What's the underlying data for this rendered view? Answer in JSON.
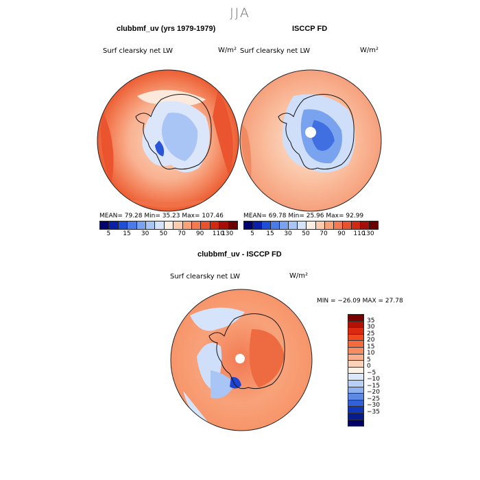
{
  "season": "JJA",
  "panels": {
    "model": {
      "title": "clubbmf_uv (yrs 1979-1979)",
      "variable": "Surf clearsky net LW",
      "units": "W/m²",
      "stats": "MEAN=   79.28   Min=   35.23   Max=  107.46"
    },
    "obs": {
      "title": "ISCCP FD",
      "variable": "Surf clearsky net LW",
      "units": "W/m²",
      "stats": "MEAN=   69.78   Min=   25.96   Max=   92.99"
    },
    "diff": {
      "title": "clubbmf_uv - ISCCP FD",
      "variable": "Surf clearsky net LW",
      "units": "W/m²",
      "stats": "MIN = −26.09  MAX =   27.78"
    }
  },
  "colorbar_top": {
    "colors": [
      "#00006e",
      "#0b1fa8",
      "#1f4fd6",
      "#4b7be8",
      "#7aa3ef",
      "#a9c5f5",
      "#d6e4fb",
      "#fdeee4",
      "#fcccb0",
      "#f8a27a",
      "#f27a52",
      "#e9522e",
      "#d12a12",
      "#a50f08",
      "#6b0000"
    ],
    "labels": [
      "5",
      "15",
      "30",
      "50",
      "70",
      "90",
      "110",
      "130"
    ]
  },
  "colorbar_diff": {
    "colors": [
      "#7a0000",
      "#b01205",
      "#db2a0e",
      "#f0491e",
      "#f56a3e",
      "#f78b62",
      "#f9ae8c",
      "#fcd2bb",
      "#fdf1e8",
      "#dce8fa",
      "#b8d0f6",
      "#8eb2f0",
      "#5e8ae6",
      "#3260d8",
      "#1236b8",
      "#061c8c",
      "#000066"
    ],
    "labels": [
      "35",
      "30",
      "25",
      "20",
      "15",
      "10",
      "5",
      "0",
      "−5",
      "−10",
      "−15",
      "−20",
      "−25",
      "−30",
      "−35"
    ]
  }
}
